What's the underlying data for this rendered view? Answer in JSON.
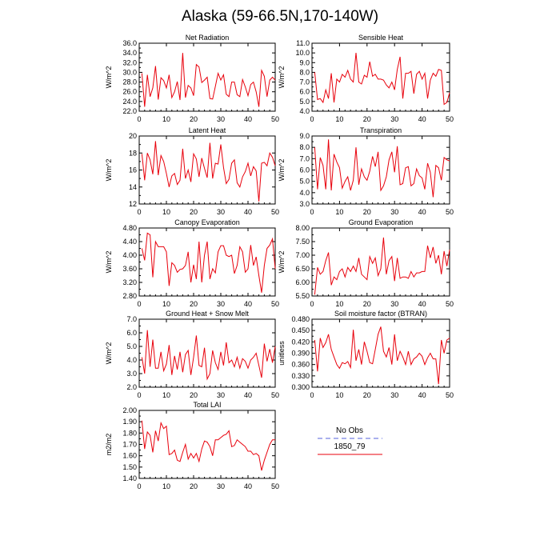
{
  "title": "Alaska (59-66.5N,170-140W)",
  "legend": {
    "entries": [
      {
        "name": "No Obs",
        "color": "#8e96e8",
        "dash": "6,4"
      },
      {
        "name": "1850_79",
        "color": "#e8000b",
        "dash": ""
      }
    ]
  },
  "chart_data": [
    {
      "type": "line",
      "title": "Net Radiation",
      "ylabel": "W/m^2",
      "xlim": [
        0,
        50
      ],
      "xticks": [
        0,
        10,
        20,
        30,
        40,
        50
      ],
      "ylim": [
        22.0,
        36.0
      ],
      "yticks": [
        22.0,
        24.0,
        26.0,
        28.0,
        30.0,
        32.0,
        34.0,
        36.0
      ],
      "ydec": 1,
      "series": [
        {
          "name": "1850_79",
          "x_start": 1,
          "values": [
            29.8,
            22.9,
            29.5,
            25.0,
            26.8,
            31.3,
            24.4,
            28.9,
            28.3,
            26.8,
            29.5,
            24.8,
            26.0,
            28.1,
            24.3,
            34.0,
            24.8,
            27.3,
            26.8,
            25.2,
            31.6,
            31.1,
            27.9,
            28.4,
            29.0,
            24.6,
            24.5,
            27.1,
            29.8,
            28.4,
            29.5,
            25.5,
            25.0,
            28.0,
            28.0,
            25.4,
            25.0,
            28.5,
            27.0,
            25.2,
            27.5,
            28.0,
            26.0,
            22.9,
            30.4,
            29.2,
            25.0,
            28.4,
            29.0,
            28.4
          ]
        }
      ]
    },
    {
      "type": "line",
      "title": "Sensible Heat",
      "ylabel": "W/m^2",
      "xlim": [
        0,
        50
      ],
      "xticks": [
        0,
        10,
        20,
        30,
        40,
        50
      ],
      "ylim": [
        4.0,
        11.0
      ],
      "yticks": [
        4.0,
        5.0,
        6.0,
        7.0,
        8.0,
        9.0,
        10.0,
        11.0
      ],
      "ydec": 1,
      "series": [
        {
          "name": "1850_79",
          "x_start": 1,
          "values": [
            8.0,
            5.2,
            5.3,
            4.9,
            6.2,
            5.3,
            7.9,
            4.9,
            7.3,
            7.0,
            7.8,
            7.5,
            8.2,
            7.3,
            7.0,
            10.0,
            7.0,
            6.8,
            7.7,
            7.5,
            9.1,
            7.6,
            7.8,
            7.3,
            7.3,
            7.2,
            6.7,
            6.4,
            7.0,
            6.2,
            8.3,
            9.6,
            5.3,
            7.9,
            7.9,
            8.1,
            5.8,
            7.8,
            8.1,
            7.3,
            7.9,
            5.3,
            7.2,
            7.9,
            7.6,
            8.3,
            8.2,
            4.7,
            4.9,
            5.9
          ]
        }
      ]
    },
    {
      "type": "line",
      "title": "Latent Heat",
      "ylabel": "W/m^2",
      "xlim": [
        0,
        50
      ],
      "xticks": [
        0,
        10,
        20,
        30,
        40,
        50
      ],
      "ylim": [
        12,
        20
      ],
      "yticks": [
        12,
        14,
        16,
        18,
        20
      ],
      "ydec": 0,
      "series": [
        {
          "name": "1850_79",
          "x_start": 1,
          "values": [
            17.9,
            14.8,
            18.0,
            17.2,
            15.5,
            19.4,
            15.4,
            17.7,
            17.0,
            15.6,
            14.0,
            15.3,
            15.6,
            14.3,
            14.8,
            18.5,
            15.0,
            16.0,
            14.6,
            17.9,
            17.3,
            15.2,
            17.4,
            16.2,
            15.1,
            19.2,
            15.0,
            16.8,
            16.7,
            19.0,
            16.3,
            14.4,
            14.9,
            16.8,
            17.2,
            14.5,
            14.0,
            15.2,
            15.8,
            16.8,
            15.3,
            16.4,
            15.9,
            12.3,
            16.8,
            16.9,
            16.5,
            18.0,
            17.5,
            16.5
          ]
        }
      ]
    },
    {
      "type": "line",
      "title": "Transpiration",
      "ylabel": "W/m^2",
      "xlim": [
        0,
        50
      ],
      "xticks": [
        0,
        10,
        20,
        30,
        40,
        50
      ],
      "ylim": [
        3.0,
        9.0
      ],
      "yticks": [
        3.0,
        4.0,
        5.0,
        6.0,
        7.0,
        8.0,
        9.0
      ],
      "ydec": 1,
      "series": [
        {
          "name": "1850_79",
          "x_start": 1,
          "values": [
            8.0,
            4.3,
            7.1,
            6.4,
            4.3,
            8.7,
            4.2,
            7.4,
            6.7,
            6.2,
            4.4,
            5.0,
            5.4,
            4.2,
            5.1,
            8.0,
            4.7,
            6.1,
            5.4,
            5.1,
            5.9,
            7.2,
            6.3,
            7.6,
            4.2,
            4.6,
            5.4,
            6.9,
            7.6,
            5.8,
            8.1,
            4.7,
            4.8,
            6.2,
            6.3,
            4.6,
            4.8,
            6.1,
            5.5,
            5.3,
            4.3,
            6.6,
            5.8,
            3.6,
            6.4,
            6.2,
            5.1,
            7.1,
            6.9,
            6.8
          ]
        }
      ]
    },
    {
      "type": "line",
      "title": "Canopy Evaporation",
      "ylabel": "W/m^2",
      "xlim": [
        0,
        50
      ],
      "xticks": [
        0,
        10,
        20,
        30,
        40,
        50
      ],
      "ylim": [
        2.8,
        4.8
      ],
      "yticks": [
        2.8,
        3.2,
        3.6,
        4.0,
        4.4,
        4.8
      ],
      "ydec": 2,
      "series": [
        {
          "name": "1850_79",
          "x_start": 1,
          "values": [
            4.2,
            3.85,
            4.65,
            4.6,
            3.35,
            4.4,
            4.25,
            4.25,
            4.25,
            4.1,
            3.1,
            3.78,
            3.7,
            3.5,
            3.58,
            3.6,
            3.7,
            4.1,
            3.2,
            3.72,
            3.3,
            4.4,
            3.2,
            4.0,
            4.4,
            3.3,
            3.6,
            3.48,
            4.1,
            4.28,
            4.28,
            4.0,
            3.96,
            4.0,
            3.46,
            3.7,
            4.25,
            4.1,
            3.5,
            3.6,
            4.3,
            3.7,
            3.95,
            3.4,
            2.9,
            3.7,
            4.2,
            4.3,
            4.48,
            3.6
          ]
        }
      ]
    },
    {
      "type": "line",
      "title": "Ground Evaporation",
      "ylabel": "W/m^2",
      "xlim": [
        0,
        50
      ],
      "xticks": [
        0,
        10,
        20,
        30,
        40,
        50
      ],
      "ylim": [
        5.5,
        8.0
      ],
      "yticks": [
        5.5,
        6.0,
        6.5,
        7.0,
        7.5,
        8.0
      ],
      "ydec": 2,
      "series": [
        {
          "name": "1850_79",
          "x_start": 1,
          "values": [
            5.55,
            6.55,
            6.3,
            6.4,
            6.8,
            7.1,
            5.9,
            6.2,
            6.1,
            6.4,
            6.5,
            6.2,
            6.55,
            6.4,
            6.6,
            6.4,
            6.9,
            6.3,
            6.2,
            6.1,
            6.95,
            6.7,
            6.9,
            6.25,
            6.5,
            7.65,
            6.3,
            6.8,
            6.95,
            6.05,
            6.9,
            6.15,
            6.2,
            6.2,
            6.15,
            6.4,
            6.2,
            6.35,
            6.35,
            6.4,
            6.4,
            7.35,
            6.9,
            7.3,
            6.7,
            7.0,
            6.3,
            7.15,
            6.6,
            7.2
          ]
        }
      ]
    },
    {
      "type": "line",
      "title": "Ground Heat + Snow Melt",
      "ylabel": "W/m^2",
      "xlim": [
        0,
        50
      ],
      "xticks": [
        0,
        10,
        20,
        30,
        40,
        50
      ],
      "ylim": [
        2.0,
        7.0
      ],
      "yticks": [
        2.0,
        3.0,
        4.0,
        5.0,
        6.0,
        7.0
      ],
      "ydec": 1,
      "series": [
        {
          "name": "1850_79",
          "x_start": 1,
          "values": [
            4.2,
            3.0,
            6.2,
            3.5,
            5.5,
            3.4,
            3.4,
            4.6,
            3.2,
            3.7,
            5.1,
            2.9,
            4.3,
            3.3,
            4.6,
            3.1,
            4.4,
            4.7,
            2.9,
            4.2,
            5.8,
            3.6,
            3.5,
            4.9,
            2.6,
            3.0,
            4.7,
            3.8,
            3.3,
            4.6,
            3.6,
            5.3,
            3.8,
            4.0,
            3.5,
            4.2,
            3.4,
            4.1,
            3.9,
            3.4,
            4.0,
            4.2,
            4.5,
            3.6,
            2.7,
            5.2,
            3.9,
            4.8,
            3.8,
            5.0
          ]
        }
      ]
    },
    {
      "type": "line",
      "title": "Soil moisture factor (BTRAN)",
      "ylabel": "unitless",
      "xlim": [
        0,
        50
      ],
      "xticks": [
        0,
        10,
        20,
        30,
        40,
        50
      ],
      "ylim": [
        0.3,
        0.48
      ],
      "yticks": [
        0.3,
        0.33,
        0.36,
        0.39,
        0.42,
        0.45,
        0.48
      ],
      "ydec": 3,
      "series": [
        {
          "name": "1850_79",
          "x_start": 1,
          "values": [
            0.425,
            0.342,
            0.43,
            0.405,
            0.418,
            0.44,
            0.4,
            0.38,
            0.36,
            0.35,
            0.365,
            0.362,
            0.368,
            0.352,
            0.452,
            0.37,
            0.4,
            0.36,
            0.42,
            0.395,
            0.365,
            0.362,
            0.4,
            0.44,
            0.46,
            0.395,
            0.38,
            0.405,
            0.36,
            0.44,
            0.37,
            0.395,
            0.38,
            0.36,
            0.395,
            0.36,
            0.375,
            0.38,
            0.39,
            0.382,
            0.36,
            0.378,
            0.39,
            0.375,
            0.375,
            0.308,
            0.425,
            0.39,
            0.425,
            0.43
          ]
        }
      ]
    },
    {
      "type": "line",
      "title": "Total LAI",
      "ylabel": "m2/m2",
      "xlim": [
        0,
        50
      ],
      "xticks": [
        0,
        10,
        20,
        30,
        40,
        50
      ],
      "ylim": [
        1.4,
        2.0
      ],
      "yticks": [
        1.4,
        1.5,
        1.6,
        1.7,
        1.8,
        1.9,
        2.0
      ],
      "ydec": 2,
      "series": [
        {
          "name": "1850_79",
          "x_start": 1,
          "values": [
            1.91,
            1.66,
            1.81,
            1.78,
            1.63,
            1.82,
            1.73,
            1.89,
            1.84,
            1.86,
            1.61,
            1.62,
            1.65,
            1.56,
            1.55,
            1.63,
            1.7,
            1.57,
            1.62,
            1.58,
            1.62,
            1.55,
            1.66,
            1.73,
            1.72,
            1.68,
            1.6,
            1.74,
            1.74,
            1.76,
            1.78,
            1.79,
            1.82,
            1.68,
            1.69,
            1.74,
            1.72,
            1.7,
            1.68,
            1.64,
            1.64,
            1.61,
            1.62,
            1.6,
            1.47,
            1.56,
            1.63,
            1.7,
            1.74,
            1.74
          ]
        }
      ]
    }
  ]
}
